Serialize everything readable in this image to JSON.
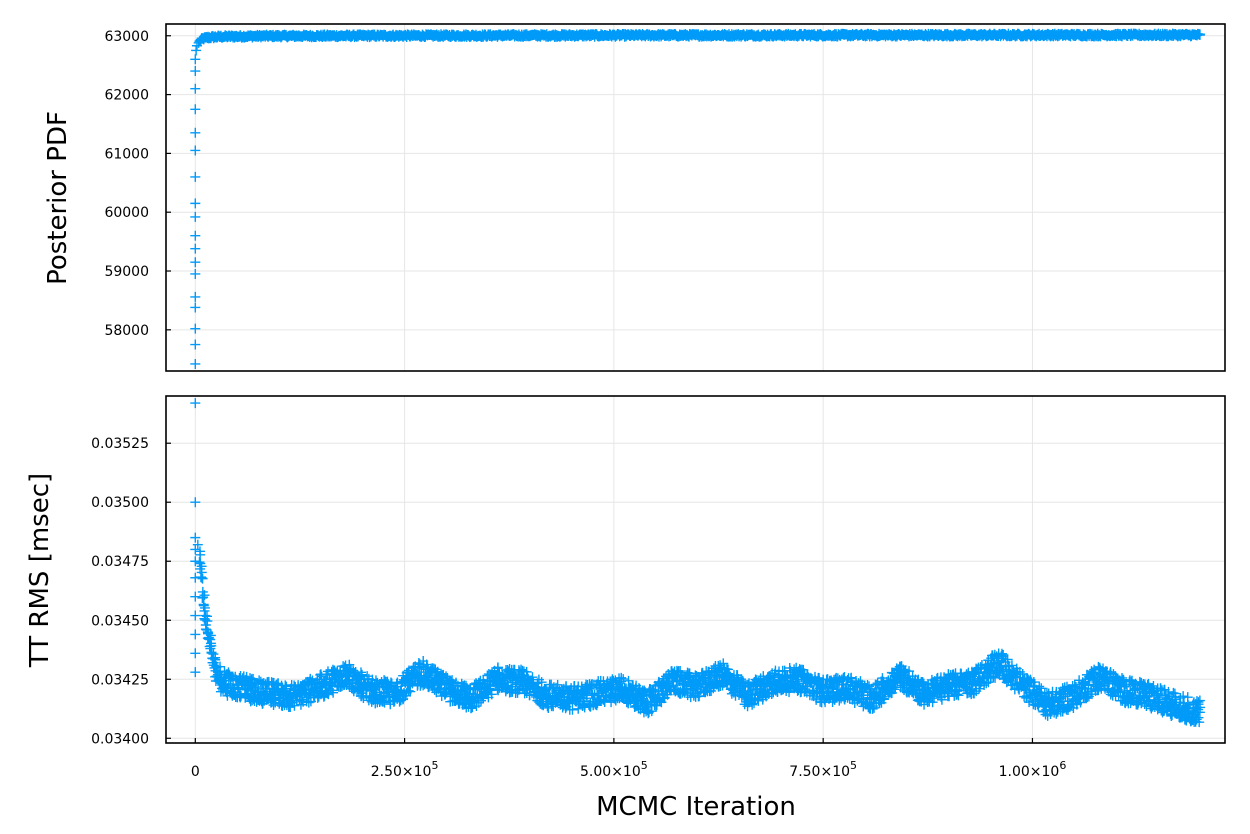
{
  "chart_data": [
    {
      "type": "scatter",
      "marker": "plus",
      "color": "#009AF9",
      "grid": true,
      "legend": "none",
      "title": "",
      "xlabel": "",
      "ylabel": "Posterior PDF",
      "xlim": [
        -35000,
        1230000
      ],
      "ylim": [
        57300,
        63200
      ],
      "xticks": [],
      "yticks": [
        {
          "value": 58000,
          "label": "58000"
        },
        {
          "value": 59000,
          "label": "59000"
        },
        {
          "value": 60000,
          "label": "60000"
        },
        {
          "value": 61000,
          "label": "61000"
        },
        {
          "value": 62000,
          "label": "62000"
        },
        {
          "value": 63000,
          "label": "63000"
        }
      ],
      "series": [
        {
          "points": [
            [
              0,
              57420
            ],
            [
              0,
              57750
            ],
            [
              0,
              58020
            ],
            [
              0,
              58380
            ],
            [
              0,
              58560
            ],
            [
              0,
              58950
            ],
            [
              0,
              59150
            ],
            [
              0,
              59380
            ],
            [
              0,
              59600
            ],
            [
              0,
              59920
            ],
            [
              0,
              60150
            ],
            [
              0,
              60600
            ],
            [
              0,
              61050
            ],
            [
              0,
              61350
            ],
            [
              0,
              61750
            ],
            [
              0,
              62100
            ],
            [
              0,
              62400
            ],
            [
              0,
              62600
            ],
            [
              1000,
              62750
            ],
            [
              2000,
              62830
            ],
            [
              4000,
              62880
            ],
            [
              6000,
              62920
            ],
            [
              9000,
              62950
            ],
            [
              15000,
              62970
            ],
            [
              30000,
              62985
            ],
            [
              80000,
              62995
            ],
            [
              200000,
              63000
            ],
            [
              400000,
              63005
            ],
            [
              600000,
              63008
            ],
            [
              800000,
              63010
            ],
            [
              1000000,
              63012
            ],
            [
              1200000,
              63013
            ]
          ]
        }
      ]
    },
    {
      "type": "scatter",
      "marker": "plus",
      "color": "#009AF9",
      "grid": true,
      "legend": "none",
      "title": "",
      "xlabel": "MCMC Iteration",
      "ylabel": "TT RMS [msec]",
      "xlim": [
        -35000,
        1230000
      ],
      "ylim": [
        0.03398,
        0.03545
      ],
      "xticks": [
        {
          "value": 0,
          "label": "0",
          "exp": ""
        },
        {
          "value": 250000,
          "label": "2.50×10",
          "exp": "5"
        },
        {
          "value": 500000,
          "label": "5.00×10",
          "exp": "5"
        },
        {
          "value": 750000,
          "label": "7.50×10",
          "exp": "5"
        },
        {
          "value": 1000000,
          "label": "1.00×10",
          "exp": "6"
        }
      ],
      "yticks": [
        {
          "value": 0.034,
          "label": "0.03400"
        },
        {
          "value": 0.03425,
          "label": "0.03425"
        },
        {
          "value": 0.0345,
          "label": "0.03450"
        },
        {
          "value": 0.03475,
          "label": "0.03475"
        },
        {
          "value": 0.035,
          "label": "0.03500"
        },
        {
          "value": 0.03525,
          "label": "0.03525"
        }
      ],
      "series": [
        {
          "points": [
            [
              0,
              0.03542
            ],
            [
              0,
              0.035
            ],
            [
              0,
              0.03485
            ],
            [
              0,
              0.0348
            ],
            [
              0,
              0.03475
            ],
            [
              0,
              0.03468
            ],
            [
              0,
              0.0346
            ],
            [
              0,
              0.03452
            ],
            [
              0,
              0.03444
            ],
            [
              0,
              0.03436
            ],
            [
              0,
              0.03428
            ],
            [
              3000,
              0.03482
            ],
            [
              6000,
              0.03474
            ],
            [
              9000,
              0.03462
            ],
            [
              12000,
              0.03452
            ],
            [
              15000,
              0.03445
            ],
            [
              18000,
              0.03438
            ],
            [
              22000,
              0.03432
            ],
            [
              27000,
              0.03427
            ],
            [
              32000,
              0.03424
            ],
            [
              40000,
              0.03423
            ],
            [
              60000,
              0.03421
            ],
            [
              90000,
              0.03419
            ],
            [
              120000,
              0.03418
            ],
            [
              150000,
              0.03422
            ],
            [
              180000,
              0.03427
            ],
            [
              210000,
              0.0342
            ],
            [
              240000,
              0.03419
            ],
            [
              270000,
              0.03428
            ],
            [
              300000,
              0.03421
            ],
            [
              330000,
              0.03417
            ],
            [
              360000,
              0.03425
            ],
            [
              390000,
              0.03424
            ],
            [
              420000,
              0.03418
            ],
            [
              450000,
              0.03417
            ],
            [
              480000,
              0.03419
            ],
            [
              510000,
              0.03421
            ],
            [
              540000,
              0.03415
            ],
            [
              570000,
              0.03424
            ],
            [
              600000,
              0.03422
            ],
            [
              630000,
              0.03427
            ],
            [
              660000,
              0.03418
            ],
            [
              690000,
              0.03424
            ],
            [
              720000,
              0.03425
            ],
            [
              750000,
              0.0342
            ],
            [
              780000,
              0.03421
            ],
            [
              810000,
              0.03417
            ],
            [
              840000,
              0.03427
            ],
            [
              870000,
              0.03419
            ],
            [
              900000,
              0.03422
            ],
            [
              930000,
              0.03424
            ],
            [
              960000,
              0.03432
            ],
            [
              990000,
              0.03422
            ],
            [
              1020000,
              0.03414
            ],
            [
              1050000,
              0.03418
            ],
            [
              1080000,
              0.03426
            ],
            [
              1110000,
              0.0342
            ],
            [
              1140000,
              0.03418
            ],
            [
              1170000,
              0.03414
            ],
            [
              1200000,
              0.03411
            ]
          ]
        }
      ]
    }
  ]
}
